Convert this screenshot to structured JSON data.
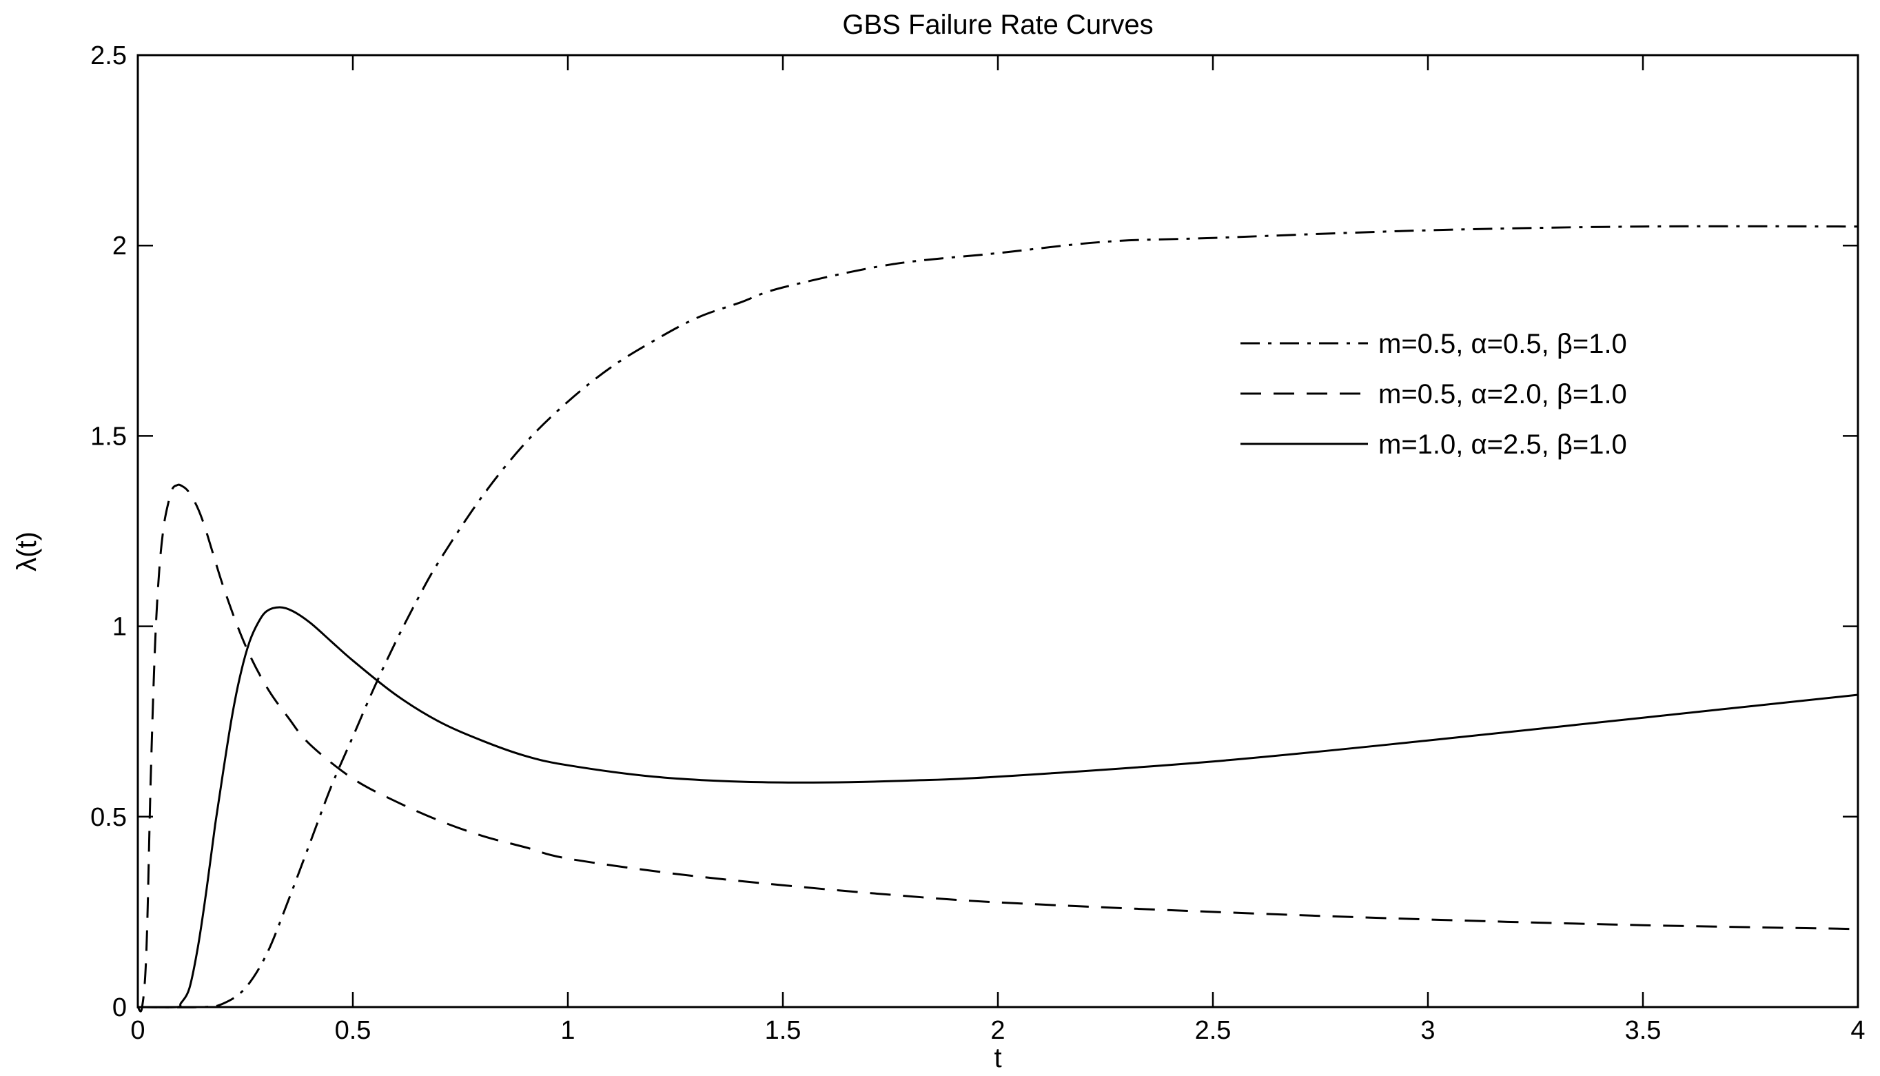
{
  "chart_data": {
    "type": "line",
    "title": "GBS Failure Rate Curves",
    "xlabel": "t",
    "ylabel": "λ(t)",
    "xlim": [
      0,
      4
    ],
    "ylim": [
      0,
      2.5
    ],
    "x_ticks": [
      0,
      0.5,
      1,
      1.5,
      2,
      2.5,
      3,
      3.5,
      4
    ],
    "x_tick_labels": [
      "0",
      "0.5",
      "1",
      "1.5",
      "2",
      "2.5",
      "3",
      "3.5",
      "4"
    ],
    "y_ticks": [
      0,
      0.5,
      1,
      1.5,
      2,
      2.5
    ],
    "y_tick_labels": [
      "0",
      "0.5",
      "1",
      "1.5",
      "2",
      "2.5"
    ],
    "grid": false,
    "legend_position": "right, upper middle",
    "series": [
      {
        "name": "m=0.5, α=0.5, β=1.0",
        "style": "dashdot",
        "color": "#000000",
        "points": [
          [
            0.0,
            0.0
          ],
          [
            0.15,
            0.0
          ],
          [
            0.2,
            0.01
          ],
          [
            0.25,
            0.05
          ],
          [
            0.3,
            0.14
          ],
          [
            0.35,
            0.28
          ],
          [
            0.4,
            0.43
          ],
          [
            0.45,
            0.58
          ],
          [
            0.5,
            0.71
          ],
          [
            0.55,
            0.84
          ],
          [
            0.6,
            0.96
          ],
          [
            0.65,
            1.07
          ],
          [
            0.7,
            1.17
          ],
          [
            0.8,
            1.34
          ],
          [
            0.9,
            1.48
          ],
          [
            1.0,
            1.59
          ],
          [
            1.1,
            1.68
          ],
          [
            1.2,
            1.75
          ],
          [
            1.3,
            1.81
          ],
          [
            1.4,
            1.85
          ],
          [
            1.5,
            1.89
          ],
          [
            1.75,
            1.95
          ],
          [
            2.0,
            1.98
          ],
          [
            2.25,
            2.01
          ],
          [
            2.5,
            2.02
          ],
          [
            3.0,
            2.04
          ],
          [
            3.5,
            2.05
          ],
          [
            4.0,
            2.05
          ]
        ]
      },
      {
        "name": "m=0.5, α=2.0, β=1.0",
        "style": "dashed",
        "color": "#000000",
        "points": [
          [
            0.0,
            0.0
          ],
          [
            0.01,
            0.0
          ],
          [
            0.02,
            0.15
          ],
          [
            0.03,
            0.6
          ],
          [
            0.04,
            0.95
          ],
          [
            0.05,
            1.15
          ],
          [
            0.06,
            1.26
          ],
          [
            0.07,
            1.32
          ],
          [
            0.08,
            1.36
          ],
          [
            0.09,
            1.37
          ],
          [
            0.1,
            1.37
          ],
          [
            0.12,
            1.35
          ],
          [
            0.15,
            1.28
          ],
          [
            0.2,
            1.1
          ],
          [
            0.25,
            0.95
          ],
          [
            0.3,
            0.84
          ],
          [
            0.35,
            0.76
          ],
          [
            0.4,
            0.69
          ],
          [
            0.5,
            0.6
          ],
          [
            0.6,
            0.54
          ],
          [
            0.7,
            0.49
          ],
          [
            0.8,
            0.45
          ],
          [
            0.9,
            0.42
          ],
          [
            1.0,
            0.39
          ],
          [
            1.25,
            0.35
          ],
          [
            1.5,
            0.32
          ],
          [
            1.75,
            0.295
          ],
          [
            2.0,
            0.275
          ],
          [
            2.5,
            0.25
          ],
          [
            3.0,
            0.23
          ],
          [
            3.5,
            0.215
          ],
          [
            4.0,
            0.205
          ]
        ]
      },
      {
        "name": "m=1.0, α=2.5, β=1.0",
        "style": "solid",
        "color": "#000000",
        "points": [
          [
            0.0,
            0.0
          ],
          [
            0.09,
            0.0
          ],
          [
            0.1,
            0.01
          ],
          [
            0.12,
            0.05
          ],
          [
            0.14,
            0.16
          ],
          [
            0.16,
            0.31
          ],
          [
            0.18,
            0.48
          ],
          [
            0.2,
            0.63
          ],
          [
            0.22,
            0.77
          ],
          [
            0.24,
            0.88
          ],
          [
            0.26,
            0.96
          ],
          [
            0.28,
            1.01
          ],
          [
            0.3,
            1.04
          ],
          [
            0.33,
            1.05
          ],
          [
            0.36,
            1.04
          ],
          [
            0.4,
            1.01
          ],
          [
            0.45,
            0.96
          ],
          [
            0.5,
            0.91
          ],
          [
            0.6,
            0.82
          ],
          [
            0.7,
            0.75
          ],
          [
            0.8,
            0.7
          ],
          [
            0.9,
            0.66
          ],
          [
            1.0,
            0.635
          ],
          [
            1.2,
            0.605
          ],
          [
            1.4,
            0.592
          ],
          [
            1.6,
            0.59
          ],
          [
            1.8,
            0.595
          ],
          [
            2.0,
            0.605
          ],
          [
            2.5,
            0.645
          ],
          [
            3.0,
            0.7
          ],
          [
            3.5,
            0.76
          ],
          [
            4.0,
            0.82
          ]
        ]
      }
    ]
  }
}
